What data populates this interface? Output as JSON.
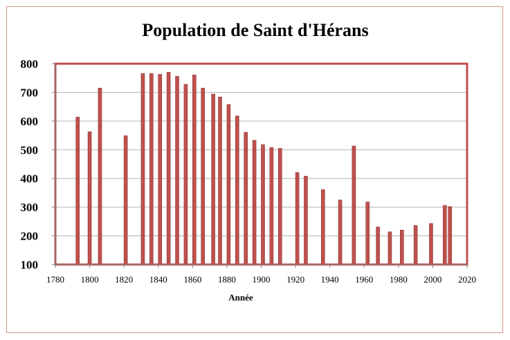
{
  "chart_data": {
    "type": "bar",
    "title": "Population de Saint  d'Hérans",
    "xlabel": "Année",
    "ylabel": "",
    "xlim": [
      1780,
      2020
    ],
    "ylim": [
      100,
      800
    ],
    "x_ticks": [
      "1780",
      "1800",
      "1820",
      "1840",
      "1860",
      "1880",
      "1900",
      "1920",
      "1940",
      "1960",
      "1980",
      "2000",
      "2020"
    ],
    "y_ticks": [
      "100",
      "200",
      "300",
      "400",
      "500",
      "600",
      "700",
      "800"
    ],
    "grid": true,
    "legend": "none",
    "bar_color": "#c0504d",
    "plot_border_color": "#c0504d",
    "x": [
      1793,
      1800,
      1806,
      1821,
      1831,
      1836,
      1841,
      1846,
      1851,
      1856,
      1861,
      1866,
      1872,
      1876,
      1881,
      1886,
      1891,
      1896,
      1901,
      1906,
      1911,
      1921,
      1926,
      1936,
      1946,
      1954,
      1962,
      1968,
      1975,
      1982,
      1990,
      1999,
      2007,
      2010
    ],
    "values": [
      614,
      563,
      715,
      549,
      766,
      766,
      763,
      770,
      756,
      728,
      761,
      715,
      694,
      684,
      658,
      618,
      561,
      533,
      518,
      508,
      505,
      421,
      408,
      361,
      325,
      513,
      318,
      231,
      214,
      220,
      236,
      243,
      306,
      302
    ]
  }
}
